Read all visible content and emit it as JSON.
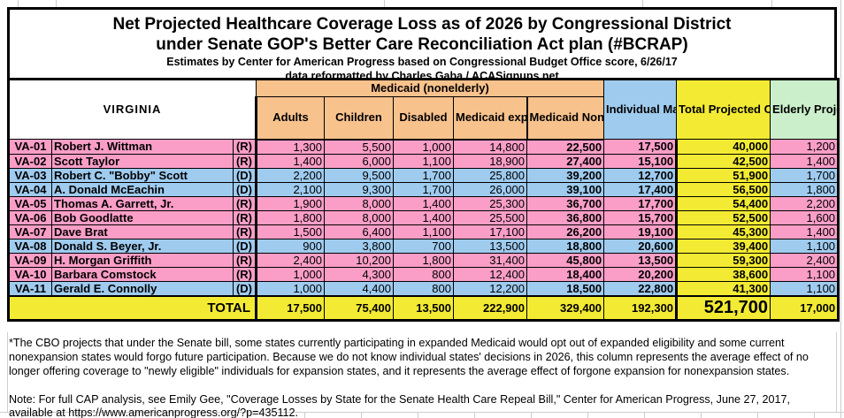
{
  "title": {
    "line1": "Net Projected Healthcare Coverage Loss as of 2026 by Congressional District",
    "line2": "under Senate GOP's Better Care Reconciliation Act plan (#BCRAP)",
    "line3": "Estimates by Center for American Progress based on Congressional Budget Office score, 6/26/17",
    "line4": "data reformatted by Charles Gaba / ACASignups.net"
  },
  "table": {
    "state": "VIRGINIA",
    "group_header": "Medicaid (nonelderly)",
    "columns": {
      "adults": "Adults",
      "children": "Children",
      "disabled": "Disabled",
      "expansion": "Medicaid expansion*",
      "subtotal": "Medicaid Nonelderly subtotal",
      "individual": "Individual Market",
      "total": "Total Projected Coverage Loss",
      "elderly": "Elderly Projected to lose Medicaid"
    },
    "rows": [
      {
        "district": "VA-01",
        "name": "Robert J. Wittman",
        "party": "(R)",
        "values": [
          "1,300",
          "5,500",
          "1,000",
          "14,800",
          "22,500",
          "17,500",
          "40,000",
          "1,200"
        ]
      },
      {
        "district": "VA-02",
        "name": "Scott Taylor",
        "party": "(R)",
        "values": [
          "1,400",
          "6,000",
          "1,100",
          "18,900",
          "27,400",
          "15,100",
          "42,500",
          "1,400"
        ]
      },
      {
        "district": "VA-03",
        "name": "Robert C. \"Bobby\" Scott",
        "party": "(D)",
        "values": [
          "2,200",
          "9,500",
          "1,700",
          "25,800",
          "39,200",
          "12,700",
          "51,900",
          "1,700"
        ]
      },
      {
        "district": "VA-04",
        "name": "A. Donald McEachin",
        "party": "(D)",
        "values": [
          "2,100",
          "9,300",
          "1,700",
          "26,000",
          "39,100",
          "17,400",
          "56,500",
          "1,800"
        ]
      },
      {
        "district": "VA-05",
        "name": "Thomas A. Garrett, Jr.",
        "party": "(R)",
        "values": [
          "1,900",
          "8,000",
          "1,400",
          "25,300",
          "36,700",
          "17,700",
          "54,400",
          "2,200"
        ]
      },
      {
        "district": "VA-06",
        "name": "Bob Goodlatte",
        "party": "(R)",
        "values": [
          "1,800",
          "8,000",
          "1,400",
          "25,500",
          "36,800",
          "15,700",
          "52,500",
          "1,600"
        ]
      },
      {
        "district": "VA-07",
        "name": "Dave Brat",
        "party": "(R)",
        "values": [
          "1,500",
          "6,400",
          "1,100",
          "17,100",
          "26,200",
          "19,100",
          "45,300",
          "1,400"
        ]
      },
      {
        "district": "VA-08",
        "name": "Donald S. Beyer, Jr.",
        "party": "(D)",
        "values": [
          "900",
          "3,800",
          "700",
          "13,500",
          "18,800",
          "20,600",
          "39,400",
          "1,100"
        ]
      },
      {
        "district": "VA-09",
        "name": "H. Morgan Griffith",
        "party": "(R)",
        "values": [
          "2,400",
          "10,200",
          "1,800",
          "31,400",
          "45,800",
          "13,500",
          "59,300",
          "2,400"
        ]
      },
      {
        "district": "VA-10",
        "name": "Barbara Comstock",
        "party": "(R)",
        "values": [
          "1,000",
          "4,300",
          "800",
          "12,400",
          "18,400",
          "20,200",
          "38,600",
          "1,100"
        ]
      },
      {
        "district": "VA-11",
        "name": "Gerald E. Connolly",
        "party": "(D)",
        "values": [
          "1,000",
          "4,400",
          "800",
          "12,200",
          "18,500",
          "22,800",
          "41,300",
          "1,100"
        ]
      }
    ],
    "total_row": {
      "label": "TOTAL",
      "values": [
        "17,500",
        "75,400",
        "13,500",
        "222,900",
        "329,400",
        "192,300",
        "521,700",
        "17,000"
      ]
    }
  },
  "footnotes": {
    "asterisk_note": "*The CBO projects that under the Senate bill, some states currently participating in expanded Medicaid would opt out of expanded eligibility and some current nonexpansion states would forgo future participation. Because we do not know individual states' decisions in 2026, this column represents the average effect of no longer offering coverage to \"newly eligible\" individuals for expansion states, and it represents the average effect of forgone expansion for nonexpansion states.",
    "cap_note": "Note: For full CAP analysis, see Emily Gee, \"Coverage Losses by State for the Senate Health Care Repeal Bill,\" Center for American Progress, June 27, 2017, available at https://www.americanprogress.org/?p=435112."
  },
  "colors": {
    "republican_row": "#FA9EC7",
    "democrat_row": "#9FCBEF",
    "medicaid_header": "#F8C28D",
    "total_col": "#F3EB33",
    "elderly_header": "#CBEFCB",
    "border": "#000000",
    "gridline": "#CDCDCD"
  }
}
